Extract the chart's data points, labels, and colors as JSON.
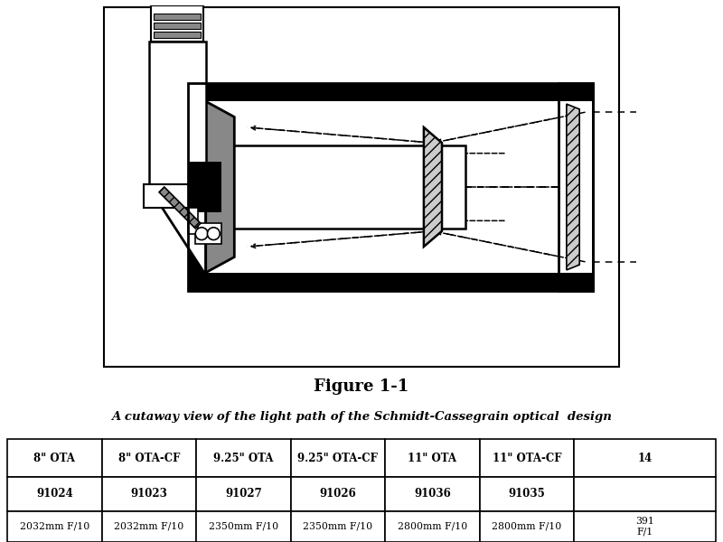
{
  "figure_title": "Figure 1-1",
  "figure_subtitle": "A cutaway view of the light path of the Schmidt-Cassegrain optical  design",
  "table_headers": [
    "8\" OTA",
    "8\" OTA-CF",
    "9.25\" OTA",
    "9.25\" OTA-CF",
    "11\" OTA",
    "11\" OTA-CF",
    "14"
  ],
  "table_row1": [
    "91024",
    "91023",
    "91027",
    "91026",
    "91036",
    "91035",
    ""
  ],
  "table_row2": [
    "2032mm F/10",
    "2032mm F/10",
    "2350mm F/10",
    "2350mm F/10",
    "2800mm F/10",
    "2800mm F/10",
    "391\nF/1"
  ],
  "white": "#ffffff",
  "black": "#000000",
  "gray_bg": "#d0d0d0",
  "dark_gray": "#555555",
  "medium_gray": "#888888",
  "light_gray": "#cccccc",
  "hatch_gray": "#aaaaaa"
}
